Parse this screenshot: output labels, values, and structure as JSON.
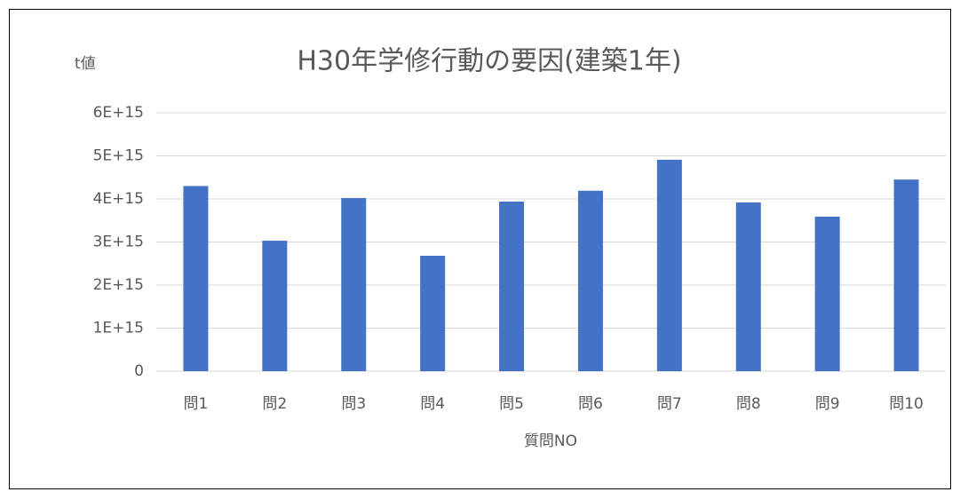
{
  "chart_data": {
    "type": "bar",
    "title": "H30年学修行動の要因(建築1年)",
    "y_label": "t値",
    "x_label": "質問NO",
    "categories": [
      "問1",
      "問2",
      "問3",
      "問4",
      "問5",
      "問6",
      "問7",
      "問8",
      "問9",
      "問10"
    ],
    "values": [
      4300000000000000.0,
      3030000000000000.0,
      4020000000000000.0,
      2680000000000000.0,
      3940000000000000.0,
      4190000000000000.0,
      4910000000000000.0,
      3920000000000000.0,
      3590000000000000.0,
      4450000000000000.0
    ],
    "color": "#4472c4",
    "ylim": [
      0,
      6000000000000000.0
    ],
    "yticks": [
      0,
      {
        "value": 1000000000000000.0,
        "label": "1E+15"
      },
      {
        "value": 2000000000000000.0,
        "label": "2E+15"
      },
      {
        "value": 3000000000000000.0,
        "label": "3E+15"
      },
      {
        "value": 4000000000000000.0,
        "label": "4E+15"
      },
      {
        "value": 5000000000000000.0,
        "label": "5E+15"
      },
      {
        "value": 6000000000000000.0,
        "label": "6E+15"
      }
    ],
    "grid": true
  }
}
